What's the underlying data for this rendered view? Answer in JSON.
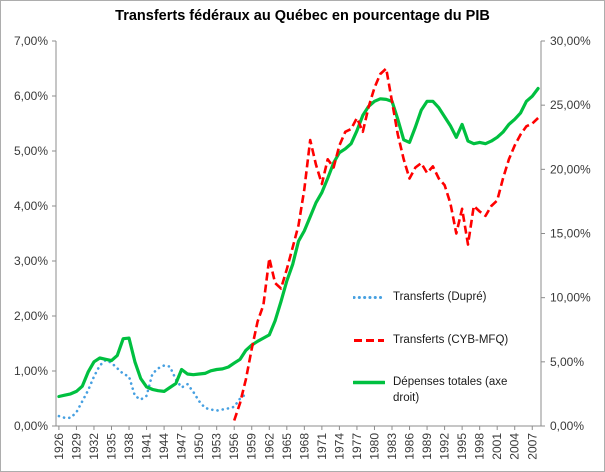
{
  "chart_data": {
    "type": "line",
    "title": "Transferts fédéraux au Québec en pourcentage du PIB",
    "grid": false,
    "legend_position": "inside-right-center",
    "x_axis": {
      "first_year": 1926,
      "last_year": 2008,
      "tick_years": [
        1926,
        1929,
        1932,
        1935,
        1938,
        1941,
        1944,
        1947,
        1950,
        1953,
        1956,
        1959,
        1962,
        1965,
        1968,
        1971,
        1974,
        1977,
        1980,
        1983,
        1986,
        1989,
        1992,
        1995,
        1998,
        2001,
        2004,
        2007
      ],
      "tick_labels": [
        "1926",
        "1929",
        "1932",
        "1935",
        "1938",
        "1941",
        "1944",
        "1947",
        "1950",
        "1953",
        "1956",
        "1959",
        "1962",
        "1965",
        "1968",
        "1971",
        "1974",
        "1977",
        "1980",
        "1983",
        "1986",
        "1989",
        "1992",
        "1995",
        "1998",
        "2001",
        "2004",
        "2007"
      ]
    },
    "left_axis": {
      "min": 0,
      "max": 7,
      "tick_values": [
        0,
        1,
        2,
        3,
        4,
        5,
        6,
        7
      ],
      "tick_labels": [
        "0,00%",
        "1,00%",
        "2,00%",
        "3,00%",
        "4,00%",
        "5,00%",
        "6,00%",
        "7,00%"
      ]
    },
    "right_axis": {
      "min": 0,
      "max": 30,
      "tick_values": [
        0,
        5,
        10,
        15,
        20,
        25,
        30
      ],
      "tick_labels": [
        "0,00%",
        "5,00%",
        "10,00%",
        "15,00%",
        "20,00%",
        "25,00%",
        "30,00%"
      ]
    },
    "series": [
      {
        "name": "Transferts (Dupré)",
        "axis": "left",
        "style": "dotted",
        "color": "#46a0e1",
        "start_year": 1926,
        "values": [
          0.18,
          0.15,
          0.15,
          0.25,
          0.45,
          0.65,
          0.9,
          1.1,
          1.2,
          1.15,
          1.05,
          0.95,
          0.9,
          0.55,
          0.48,
          0.55,
          0.95,
          1.05,
          1.1,
          1.08,
          0.85,
          0.7,
          0.76,
          0.62,
          0.45,
          0.33,
          0.3,
          0.28,
          0.3,
          0.32,
          0.35,
          0.5,
          0.58
        ]
      },
      {
        "name": "Transferts (CYB-MFQ)",
        "axis": "left",
        "style": "dashed",
        "color": "#ff0000",
        "start_year": 1956,
        "values": [
          0.1,
          0.42,
          0.85,
          1.4,
          1.9,
          2.2,
          3.05,
          2.6,
          2.5,
          2.85,
          3.25,
          3.65,
          4.3,
          5.2,
          4.75,
          4.4,
          4.85,
          4.7,
          5.1,
          5.35,
          5.4,
          5.6,
          5.35,
          5.8,
          6.15,
          6.4,
          6.5,
          5.9,
          5.3,
          4.85,
          4.5,
          4.7,
          4.78,
          4.6,
          4.72,
          4.5,
          4.38,
          4.05,
          3.5,
          3.95,
          3.3,
          4.0,
          3.9,
          3.82,
          4.0,
          4.1,
          4.5,
          4.85,
          5.1,
          5.3,
          5.45,
          5.5,
          5.6
        ]
      },
      {
        "name": "Dépenses totales (axe droit)",
        "axis": "right",
        "style": "solid",
        "color": "#00c040",
        "start_year": 1926,
        "values": [
          2.3,
          2.4,
          2.5,
          2.7,
          3.1,
          4.2,
          5.0,
          5.3,
          5.2,
          5.1,
          5.5,
          6.8,
          6.85,
          5.0,
          3.7,
          3.05,
          2.85,
          2.75,
          2.7,
          3.0,
          3.3,
          4.4,
          4.05,
          4.0,
          4.05,
          4.1,
          4.3,
          4.4,
          4.45,
          4.6,
          4.9,
          5.2,
          5.9,
          6.3,
          6.6,
          6.85,
          7.1,
          8.2,
          9.7,
          11.3,
          12.6,
          14.4,
          15.2,
          16.3,
          17.4,
          18.2,
          19.3,
          20.5,
          21.3,
          21.6,
          22.0,
          23.0,
          24.2,
          24.9,
          25.3,
          25.5,
          25.45,
          25.3,
          23.9,
          22.3,
          22.1,
          23.3,
          24.6,
          25.3,
          25.3,
          24.8,
          24.1,
          23.4,
          22.5,
          23.5,
          22.2,
          22.0,
          22.1,
          22.0,
          22.2,
          22.5,
          22.9,
          23.5,
          23.9,
          24.4,
          25.3,
          25.7,
          26.3
        ]
      }
    ],
    "colors": {
      "axis_line": "#8c8c8c",
      "tick_label": "#3a3a3a",
      "frame_border": "#adadad",
      "background": "#ffffff"
    }
  }
}
